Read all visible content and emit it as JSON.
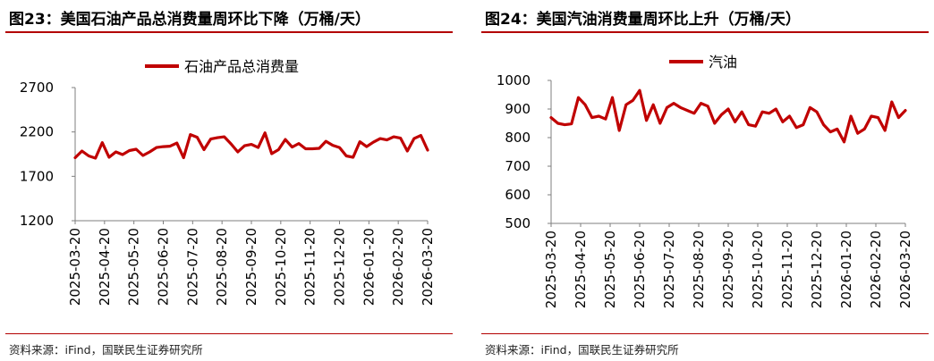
{
  "colors": {
    "series": "#c00000",
    "axis": "#7f7f7f",
    "rule": "#b30000"
  },
  "panels": [
    {
      "title": "图23：美国石油产品总消费量周环比下降（万桶/天）",
      "source": "资料来源：iFind，国联民生证券研究所",
      "chart_data": {
        "type": "line",
        "title": "",
        "xlabel": "",
        "ylabel": "",
        "ylim": [
          1200,
          2700
        ],
        "yticks": [
          1200,
          1700,
          2200,
          2700
        ],
        "grid": false,
        "legend": "top-center",
        "xtick_labels": [
          "2025-03-20",
          "2025-04-20",
          "2025-05-20",
          "2025-06-20",
          "2025-07-20",
          "2025-08-20",
          "2025-09-20",
          "2025-10-20",
          "2025-11-20",
          "2025-12-20",
          "2026-01-20",
          "2026-02-20",
          "2026-03-20"
        ],
        "x_start": "2025-03-20",
        "x_end": "2026-03-20",
        "series": [
          {
            "name": "石油产品总消费量",
            "values": [
              1910,
              1985,
              1930,
              1905,
              2080,
              1915,
              1975,
              1945,
              1990,
              2005,
              1935,
              1975,
              2025,
              2035,
              2040,
              2075,
              1910,
              2170,
              2140,
              2000,
              2120,
              2135,
              2145,
              2065,
              1975,
              2045,
              2060,
              2025,
              2190,
              1955,
              2000,
              2115,
              2030,
              2070,
              2010,
              2010,
              2015,
              2095,
              2050,
              2025,
              1930,
              1915,
              2090,
              2035,
              2085,
              2125,
              2110,
              2145,
              2130,
              1985,
              2125,
              2160,
              1995
            ]
          }
        ]
      }
    },
    {
      "title": "图24：美国汽油消费量周环比上升（万桶/天）",
      "source": "资料来源：iFind，国联民生证券研究所",
      "chart_data": {
        "type": "line",
        "title": "",
        "xlabel": "",
        "ylabel": "",
        "ylim": [
          500,
          1000
        ],
        "yticks": [
          500,
          600,
          700,
          800,
          900,
          1000
        ],
        "grid": false,
        "legend": "top-center",
        "xtick_labels": [
          "2025-03-20",
          "2025-04-20",
          "2025-05-20",
          "2025-06-20",
          "2025-07-20",
          "2025-08-20",
          "2025-09-20",
          "2025-10-20",
          "2025-11-20",
          "2025-12-20",
          "2026-01-20",
          "2026-02-20",
          "2026-03-20"
        ],
        "x_start": "2025-03-20",
        "x_end": "2026-03-20",
        "series": [
          {
            "name": "汽油",
            "values": [
              870,
              850,
              845,
              848,
              940,
              915,
              870,
              875,
              865,
              940,
              825,
              915,
              930,
              965,
              860,
              915,
              850,
              905,
              920,
              905,
              895,
              885,
              920,
              910,
              850,
              880,
              900,
              855,
              890,
              845,
              840,
              890,
              885,
              900,
              855,
              875,
              835,
              845,
              905,
              890,
              845,
              820,
              830,
              785,
              875,
              815,
              830,
              875,
              870,
              825,
              925,
              870,
              895
            ]
          }
        ]
      }
    }
  ]
}
